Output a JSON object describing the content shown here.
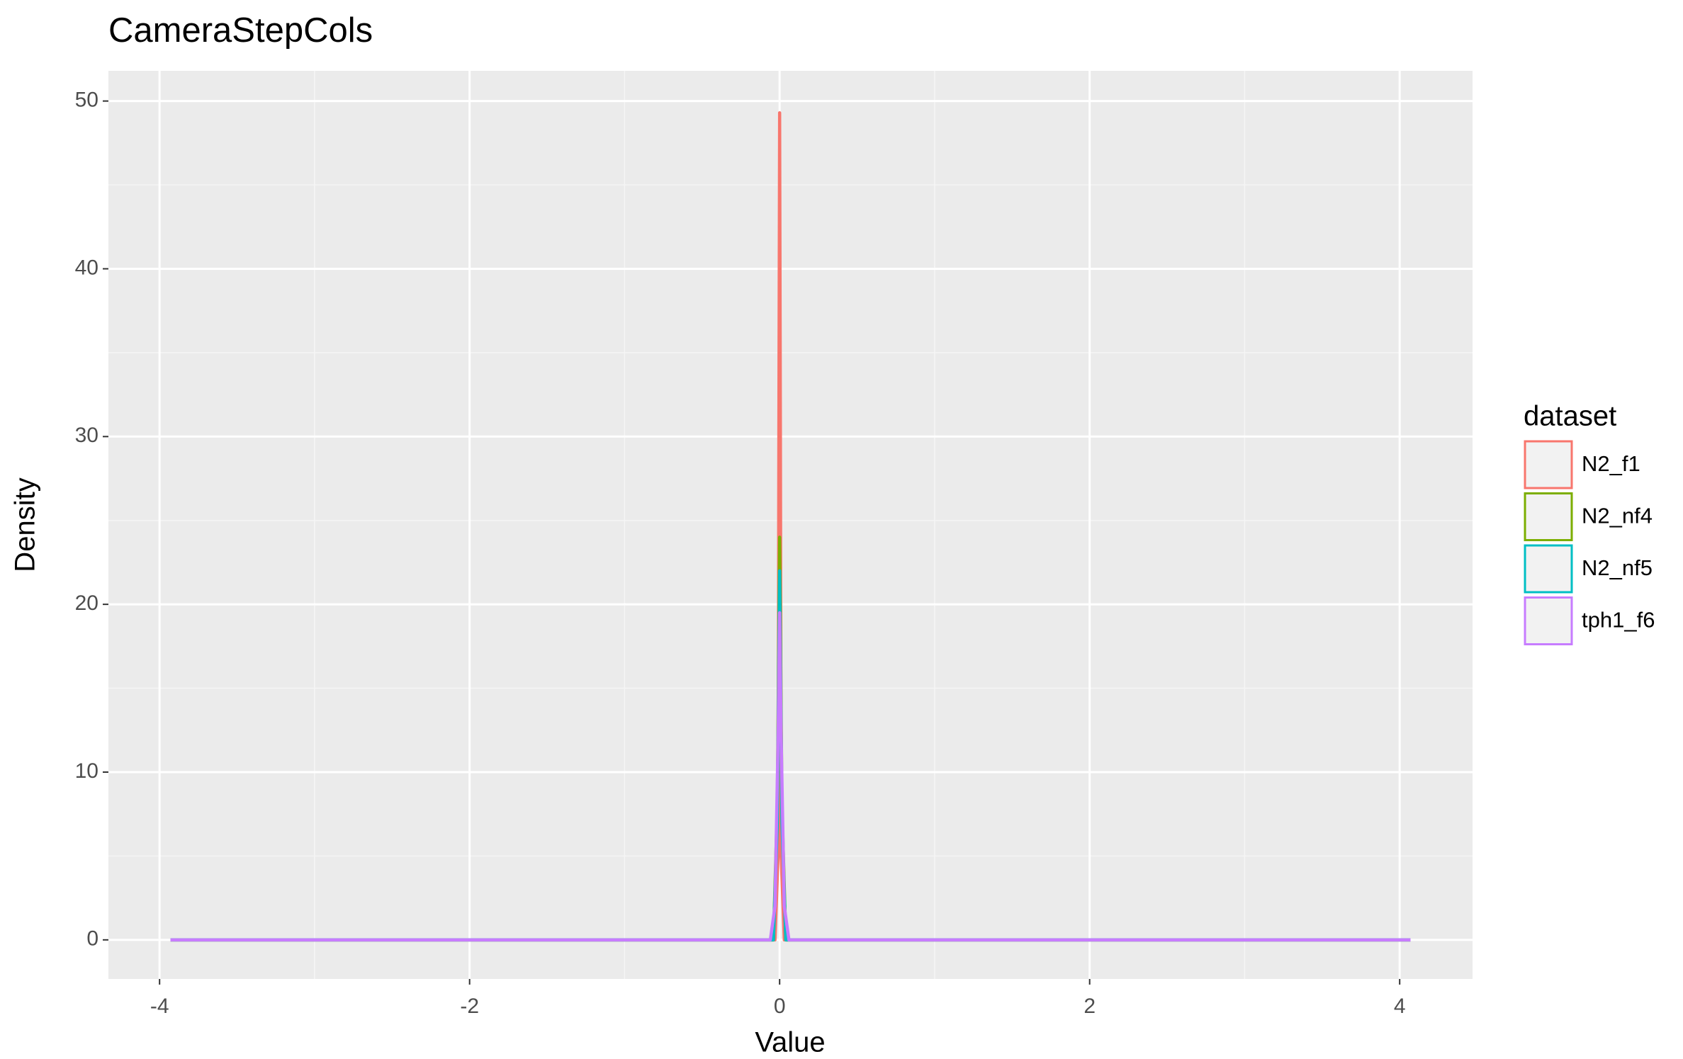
{
  "chart_data": {
    "type": "line",
    "title": "CameraStepCols",
    "xlabel": "Value",
    "ylabel": "Density",
    "legend_title": "dataset",
    "legend": "right",
    "xlim": [
      -4.33,
      4.47
    ],
    "ylim": [
      -2.33,
      51.8
    ],
    "xticks": [
      -4,
      -2,
      0,
      2,
      4
    ],
    "yticks": [
      0,
      10,
      20,
      30,
      40,
      50
    ],
    "grid": true,
    "series": [
      {
        "name": "N2_f1",
        "color": "#F8766D",
        "x": [
          -3.93,
          -0.03,
          -0.01,
          -0.005,
          0,
          0.005,
          0.01,
          0.03,
          4.07
        ],
        "values": [
          0,
          0,
          5,
          30,
          49.3,
          30,
          5,
          0,
          0
        ]
      },
      {
        "name": "N2_nf4",
        "color": "#7CAE00",
        "x": [
          -3.93,
          -0.04,
          -0.015,
          0,
          0.015,
          0.04,
          4.07
        ],
        "values": [
          0,
          0,
          8,
          24,
          8,
          0,
          0
        ]
      },
      {
        "name": "N2_nf5",
        "color": "#00BFC4",
        "x": [
          -3.93,
          -0.04,
          -0.015,
          0,
          0.015,
          0.04,
          4.07
        ],
        "values": [
          0,
          0,
          7,
          22,
          7,
          0,
          0
        ]
      },
      {
        "name": "tph1_f6",
        "color": "#C77CFF",
        "x": [
          -3.93,
          -0.06,
          -0.03,
          -0.01,
          0,
          0.01,
          0.03,
          0.06,
          4.07
        ],
        "values": [
          0,
          0,
          2,
          12,
          19.5,
          12,
          2,
          0,
          0
        ]
      }
    ]
  }
}
